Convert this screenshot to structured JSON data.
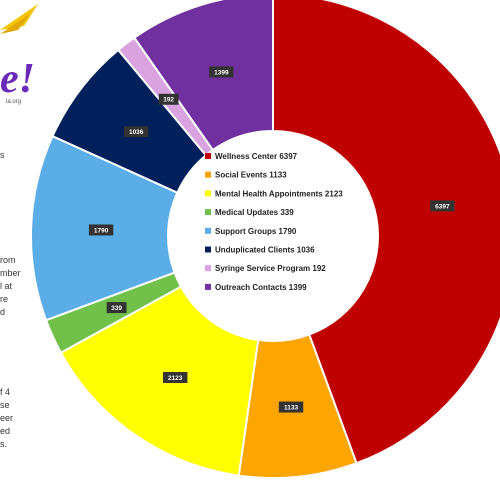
{
  "logo": {
    "glyph": "e!",
    "tagline": "la.org"
  },
  "side_text_fragments": [
    "s",
    "rom",
    "mber",
    "l at",
    "re",
    "d",
    "f 4",
    "se",
    "eer",
    "ed",
    "s."
  ],
  "chart_data": {
    "type": "pie",
    "donut": true,
    "start_angle_deg": 0,
    "direction": "clockwise",
    "categories": [
      "Wellness Center",
      "Social Events",
      "Mental Health Appointments",
      "Medical Updates",
      "Support Groups",
      "Unduplicated Clients",
      "Syringe Service Program",
      "Outreach Contacts"
    ],
    "values": [
      6397,
      1133,
      2123,
      339,
      1790,
      1036,
      192,
      1399
    ],
    "data_labels": [
      "6397",
      "1133",
      "2123",
      "339",
      "1790",
      "1036",
      "192",
      "1399"
    ],
    "colors": [
      "#c00000",
      "#ffa500",
      "#ffff00",
      "#70c04a",
      "#5aade6",
      "#00205b",
      "#d9a3e0",
      "#7030a0"
    ],
    "legend": [
      "Wellness Center  6397",
      "Social Events  1133",
      "Mental Health Appointments  2123",
      "Medical Updates  339",
      "Support Groups  1790",
      "Unduplicated Clients  1036",
      "Syringe Service Program  192",
      "Outreach Contacts  1399"
    ],
    "legend_position": "center"
  }
}
